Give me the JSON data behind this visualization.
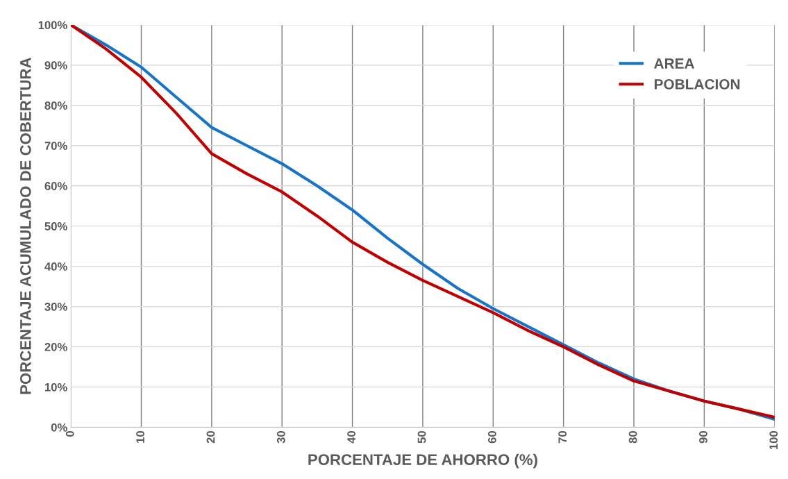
{
  "chart_data": {
    "type": "line",
    "xlabel": "PORCENTAJE DE AHORRO (%)",
    "ylabel": "PORCENTAJE ACUMULADO DE COBERTURA",
    "x": [
      0,
      5,
      10,
      15,
      20,
      25,
      30,
      35,
      40,
      45,
      50,
      55,
      60,
      65,
      70,
      75,
      80,
      85,
      90,
      95,
      100
    ],
    "series": [
      {
        "name": "AREA",
        "color": "#1874c6",
        "values": [
          100,
          95,
          89.5,
          82,
          74.5,
          70,
          65.5,
          60,
          54,
          47,
          40.5,
          34.5,
          29.5,
          25,
          20.5,
          16,
          12,
          9,
          6.5,
          4.5,
          2
        ]
      },
      {
        "name": "POBLACION",
        "color": "#c00000",
        "values": [
          100,
          94,
          87,
          78,
          68,
          63,
          58.5,
          52.5,
          46,
          41,
          36.5,
          32.5,
          28.5,
          24,
          20,
          15.5,
          11.5,
          9,
          6.5,
          4.5,
          2.5
        ]
      }
    ],
    "xlim": [
      0,
      100
    ],
    "xticks": [
      0,
      10,
      20,
      30,
      40,
      50,
      60,
      70,
      80,
      90,
      100
    ],
    "ylim": [
      0,
      100
    ],
    "yticks": [
      {
        "value": 0,
        "label": "0%"
      },
      {
        "value": 10,
        "label": "10%"
      },
      {
        "value": 20,
        "label": "20%"
      },
      {
        "value": 30,
        "label": "30%"
      },
      {
        "value": 40,
        "label": "40%"
      },
      {
        "value": 50,
        "label": "50%"
      },
      {
        "value": 60,
        "label": "60%"
      },
      {
        "value": 70,
        "label": "70%"
      },
      {
        "value": 80,
        "label": "80%"
      },
      {
        "value": 90,
        "label": "90%"
      },
      {
        "value": 100,
        "label": "100%"
      }
    ],
    "grid": true,
    "legend": "top right",
    "marker": "none",
    "line_style": "solid"
  }
}
